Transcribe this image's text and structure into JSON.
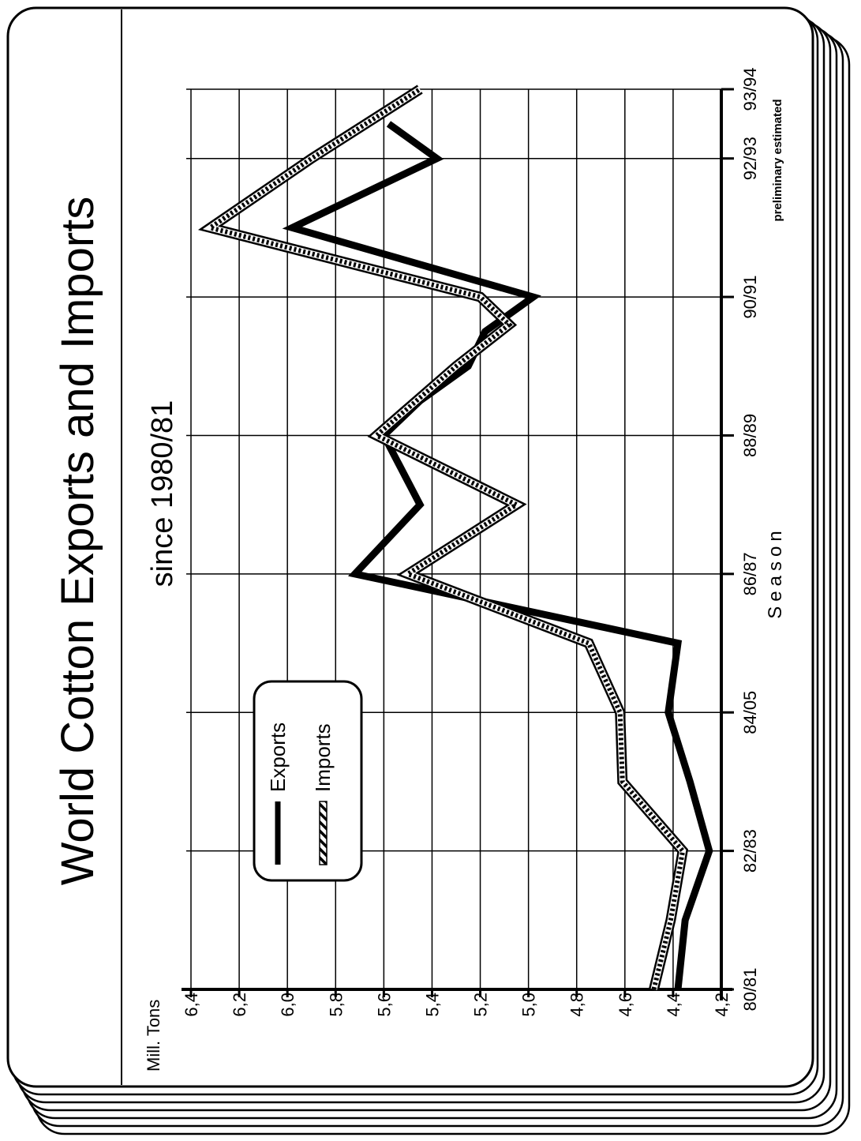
{
  "chart_data": {
    "type": "line",
    "title": "World Cotton Exports and Imports",
    "subtitle": "since 1980/81",
    "unit_label": "Mill. Tons",
    "xlabel": "Season",
    "ylabel": "",
    "ylim": [
      4.2,
      6.4
    ],
    "yticks": [
      "6,4",
      "6,2",
      "6,0",
      "5,8",
      "5,6",
      "5,4",
      "5,2",
      "5,0",
      "4,8",
      "4,6",
      "4,4",
      "4,2"
    ],
    "ytick_values": [
      6.4,
      6.2,
      6.0,
      5.8,
      5.6,
      5.4,
      5.2,
      5.0,
      4.8,
      4.6,
      4.4,
      4.2
    ],
    "xticks": [
      "80/81",
      "82/83",
      "84/05",
      "86/87",
      "88/89",
      "90/91",
      "92/93",
      "93/94"
    ],
    "xtick_positions": [
      80,
      82,
      84,
      86,
      88,
      90,
      92,
      93
    ],
    "xtick_note": "preliminary estimated",
    "grid": true,
    "legend_position": "left",
    "series": [
      {
        "name": "Exports",
        "color": "#000000",
        "style": "solid",
        "x": [
          80,
          81,
          82,
          83,
          84,
          85,
          86,
          87,
          88,
          88.5,
          89,
          89.5,
          90,
          91,
          92,
          92.5
        ],
        "values": [
          4.38,
          4.35,
          4.25,
          4.33,
          4.42,
          4.38,
          5.72,
          5.45,
          5.6,
          5.45,
          5.25,
          5.18,
          4.98,
          5.98,
          5.38,
          5.58
        ]
      },
      {
        "name": "Imports",
        "color": "#000000",
        "style": "hatched",
        "x": [
          80,
          81,
          82,
          83,
          84,
          85,
          86,
          87,
          88,
          89,
          89.6,
          90,
          91,
          92,
          93
        ],
        "values": [
          4.48,
          4.41,
          4.36,
          4.61,
          4.62,
          4.75,
          5.5,
          5.05,
          5.63,
          5.3,
          5.08,
          5.2,
          6.32,
          5.9,
          5.45
        ]
      }
    ]
  }
}
